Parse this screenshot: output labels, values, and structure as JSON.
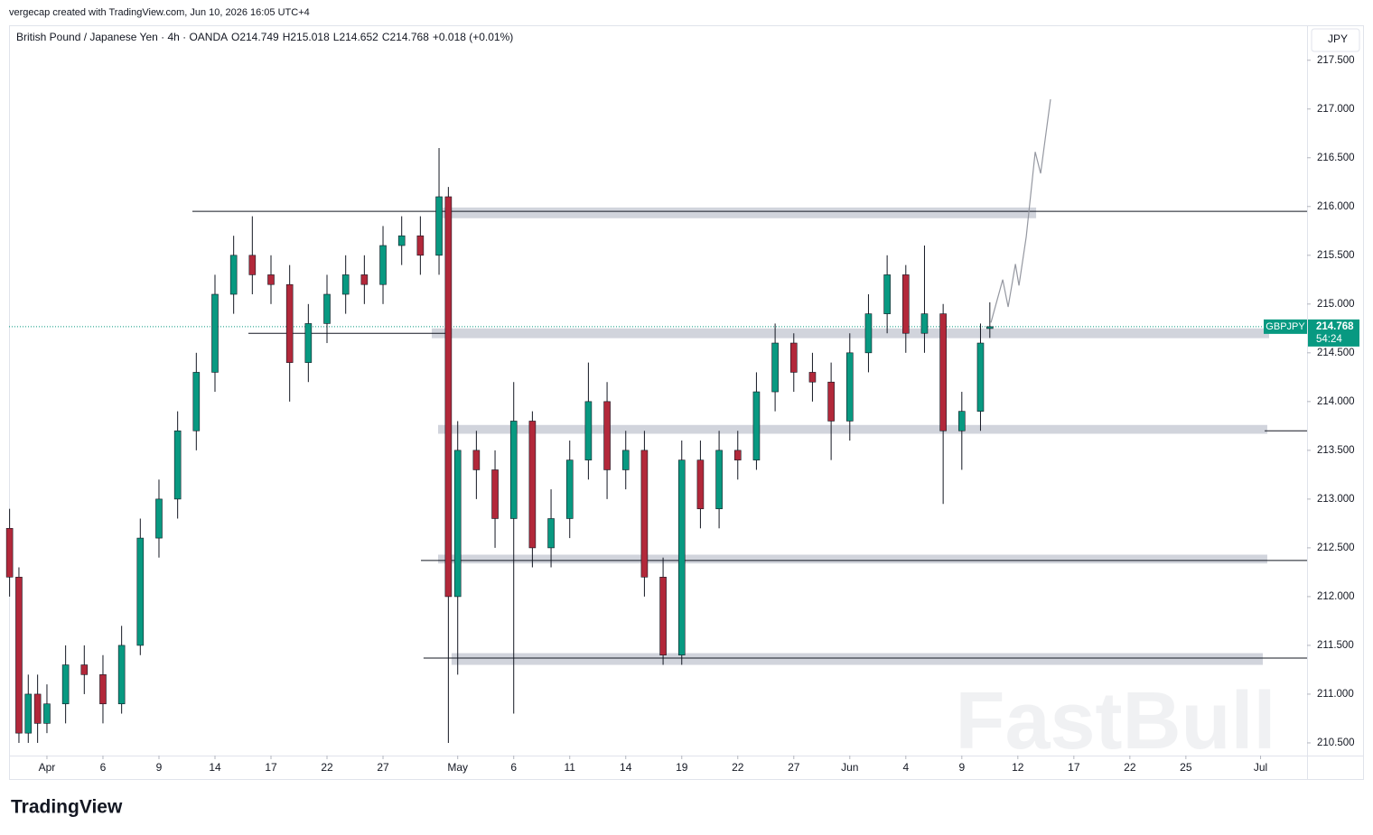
{
  "header": {
    "credit": "vergecap created with TradingView.com, Jun 10, 2026 16:05 UTC+4",
    "footer_logo": "TradingView"
  },
  "chart_data": {
    "type": "candlestick",
    "title": "British Pound / Japanese Yen · 4h · OANDA",
    "ohlc_text": [
      "O214.749",
      "H215.018",
      "L214.652",
      "C214.768",
      "+0.018 (+0.01%)"
    ],
    "currency": "JPY",
    "symbol": "GBPJPY",
    "last_price": 214.768,
    "countdown": "54:24",
    "watermark": "FastBull",
    "up_color": "#089981",
    "down_color": "#b2283a",
    "wick_color": "#131722",
    "level_color": "#131722",
    "zone_color": "#d1d4dc",
    "projection_color": "#9598a1",
    "last_color": "#089981",
    "x": [
      -2,
      -1.5,
      -1,
      -0.5,
      0,
      1,
      2,
      3,
      4,
      5,
      6,
      7,
      8,
      9,
      10,
      11,
      12,
      13,
      14,
      15,
      16,
      17,
      18,
      19,
      20,
      21,
      21.5,
      22,
      23,
      24,
      25,
      26,
      27,
      28,
      29,
      30,
      31,
      32,
      33,
      34,
      35,
      36,
      37,
      38,
      39,
      40,
      41,
      42,
      43,
      44,
      45,
      46,
      47,
      48,
      49,
      50,
      50.5
    ],
    "open": [
      212.7,
      212.2,
      210.6,
      211.0,
      210.7,
      210.9,
      211.3,
      211.2,
      210.9,
      211.5,
      212.6,
      213.0,
      213.7,
      214.3,
      215.1,
      215.5,
      215.3,
      215.2,
      214.4,
      214.8,
      215.1,
      215.3,
      215.2,
      215.6,
      215.7,
      215.5,
      216.1,
      212.0,
      213.5,
      213.3,
      212.8,
      213.8,
      212.5,
      212.8,
      213.4,
      214.0,
      213.3,
      213.5,
      212.2,
      211.4,
      213.4,
      212.9,
      213.5,
      213.4,
      214.1,
      214.6,
      214.3,
      214.2,
      213.8,
      214.5,
      214.9,
      215.3,
      214.7,
      214.9,
      213.7,
      213.9,
      214.749
    ],
    "high": [
      212.9,
      212.3,
      211.2,
      211.2,
      211.1,
      211.5,
      211.5,
      211.4,
      211.7,
      212.8,
      213.2,
      213.9,
      214.5,
      215.3,
      215.7,
      215.9,
      215.5,
      215.4,
      215.0,
      215.3,
      215.5,
      215.5,
      215.8,
      215.9,
      215.9,
      216.6,
      216.2,
      213.8,
      213.7,
      213.5,
      214.2,
      213.9,
      213.1,
      213.6,
      214.4,
      214.2,
      213.7,
      213.7,
      212.4,
      213.6,
      213.6,
      213.7,
      213.7,
      214.3,
      214.8,
      214.7,
      214.5,
      214.4,
      214.7,
      215.1,
      215.5,
      215.4,
      215.6,
      215.0,
      214.1,
      214.8,
      215.018
    ],
    "low": [
      212.0,
      210.5,
      210.5,
      210.5,
      210.6,
      210.7,
      211.0,
      210.7,
      210.8,
      211.4,
      212.4,
      212.8,
      213.5,
      214.1,
      214.9,
      215.1,
      215.0,
      214.0,
      214.2,
      214.6,
      214.9,
      215.0,
      215.0,
      215.4,
      215.3,
      215.3,
      210.5,
      211.2,
      213.0,
      212.5,
      210.8,
      212.3,
      212.3,
      212.6,
      213.2,
      213.0,
      213.1,
      212.0,
      211.3,
      211.3,
      212.7,
      212.7,
      213.2,
      213.3,
      213.9,
      214.1,
      214.0,
      213.4,
      213.6,
      214.3,
      214.7,
      214.5,
      214.5,
      212.95,
      213.3,
      213.7,
      214.652
    ],
    "close": [
      212.2,
      210.6,
      211.0,
      210.7,
      210.9,
      211.3,
      211.2,
      210.9,
      211.5,
      212.6,
      213.0,
      213.7,
      214.3,
      215.1,
      215.5,
      215.3,
      215.2,
      214.4,
      214.8,
      215.1,
      215.3,
      215.2,
      215.6,
      215.7,
      215.5,
      216.1,
      212.0,
      213.5,
      213.3,
      212.8,
      213.8,
      212.5,
      212.8,
      213.4,
      214.0,
      213.3,
      213.5,
      212.2,
      211.4,
      213.4,
      212.9,
      213.5,
      213.4,
      214.1,
      214.6,
      214.3,
      214.2,
      213.8,
      214.5,
      214.9,
      215.3,
      214.7,
      214.9,
      213.7,
      213.9,
      214.6,
      214.768
    ],
    "zones": [
      {
        "low": 215.88,
        "high": 215.99,
        "x_start": 21.19,
        "x_end": 52.98
      },
      {
        "low": 214.65,
        "high": 214.75,
        "x_start": 20.61,
        "x_end": 65.46
      },
      {
        "low": 213.67,
        "high": 213.76,
        "x_start": 20.95,
        "x_end": 65.36
      },
      {
        "low": 212.34,
        "high": 212.43,
        "x_start": 20.95,
        "x_end": 65.36
      },
      {
        "low": 211.3,
        "high": 211.42,
        "x_start": 21.67,
        "x_end": 65.12
      }
    ],
    "levels": [
      {
        "price": 215.95,
        "x_start": 7.79,
        "x_end": 67.49
      },
      {
        "price": 214.7,
        "x_start": 10.79,
        "x_end": 21.67
      },
      {
        "price": 213.7,
        "x_start": 65.22,
        "x_end": 67.49
      },
      {
        "price": 212.37,
        "x_start": 20.03,
        "x_end": 67.49
      },
      {
        "price": 211.37,
        "x_start": 20.17,
        "x_end": 67.49
      }
    ],
    "projection": {
      "x": [
        50.56,
        51.19,
        51.48,
        51.87,
        52.06,
        52.45,
        52.93,
        53.22,
        53.75
      ],
      "y": [
        214.81,
        215.25,
        214.97,
        215.41,
        215.19,
        215.69,
        216.56,
        216.34,
        217.1
      ]
    },
    "xlim": [
      -2.03,
      67.49
    ],
    "ylim": [
      210.37,
      217.84
    ],
    "xticks": [
      {
        "value": 0,
        "label": "Apr"
      },
      {
        "value": 3,
        "label": "6"
      },
      {
        "value": 6,
        "label": "9"
      },
      {
        "value": 9,
        "label": "14"
      },
      {
        "value": 12,
        "label": "17"
      },
      {
        "value": 15,
        "label": "22"
      },
      {
        "value": 18,
        "label": "27"
      },
      {
        "value": 22,
        "label": "May"
      },
      {
        "value": 25,
        "label": "6"
      },
      {
        "value": 28,
        "label": "11"
      },
      {
        "value": 31,
        "label": "14"
      },
      {
        "value": 34,
        "label": "19"
      },
      {
        "value": 37,
        "label": "22"
      },
      {
        "value": 40,
        "label": "27"
      },
      {
        "value": 43,
        "label": "Jun"
      },
      {
        "value": 46,
        "label": "4"
      },
      {
        "value": 49,
        "label": "9"
      },
      {
        "value": 52,
        "label": "12"
      },
      {
        "value": 55,
        "label": "17"
      },
      {
        "value": 58,
        "label": "22"
      },
      {
        "value": 61,
        "label": "25"
      },
      {
        "value": 65,
        "label": "Jul"
      }
    ],
    "yticks": [
      {
        "value": 210.5,
        "label": "210.500"
      },
      {
        "value": 211,
        "label": "211.000"
      },
      {
        "value": 211.5,
        "label": "211.500"
      },
      {
        "value": 212,
        "label": "212.000"
      },
      {
        "value": 212.5,
        "label": "212.500"
      },
      {
        "value": 213,
        "label": "213.000"
      },
      {
        "value": 213.5,
        "label": "213.500"
      },
      {
        "value": 214,
        "label": "214.000"
      },
      {
        "value": 214.5,
        "label": "214.500"
      },
      {
        "value": 215,
        "label": "215.000"
      },
      {
        "value": 215.5,
        "label": "215.500"
      },
      {
        "value": 216,
        "label": "216.000"
      },
      {
        "value": 216.5,
        "label": "216.500"
      },
      {
        "value": 217,
        "label": "217.000"
      },
      {
        "value": 217.5,
        "label": "217.500"
      }
    ]
  }
}
